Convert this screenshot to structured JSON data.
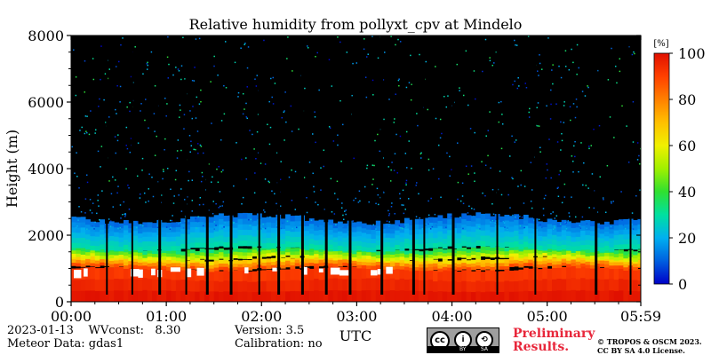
{
  "chart_data": {
    "type": "heatmap",
    "title": "Relative humidity from pollyxt_cpv at Mindelo",
    "xlabel": "UTC",
    "ylabel": "Height (m)",
    "x_ticks": [
      "00:00",
      "01:00",
      "02:00",
      "03:00",
      "04:00",
      "05:00",
      "05:59"
    ],
    "x_range_minutes": [
      0,
      359
    ],
    "y_ticks": [
      0,
      2000,
      4000,
      6000,
      8000
    ],
    "ylim": [
      0,
      8000
    ],
    "colorbar": {
      "label": "[%]",
      "range": [
        0,
        100
      ],
      "ticks": [
        0,
        20,
        40,
        60,
        80,
        100
      ],
      "colormap": [
        "#0000c8",
        "#0060e0",
        "#00b0f0",
        "#00e0a0",
        "#30e030",
        "#a0f000",
        "#f0f000",
        "#ffc000",
        "#ff8000",
        "#ff4000",
        "#e01000"
      ]
    },
    "background_no_data": "#000000",
    "layers": [
      {
        "height_range": [
          0,
          1000
        ],
        "rh_percent": "90-100"
      },
      {
        "height_range": [
          1000,
          1300
        ],
        "rh_percent": "60-90"
      },
      {
        "height_range": [
          1300,
          1600
        ],
        "rh_percent": "30-60"
      },
      {
        "height_range": [
          1600,
          2500
        ],
        "rh_percent": "10-30"
      },
      {
        "height_range": [
          2500,
          8000
        ],
        "rh_percent": "0-15 (sparse)"
      }
    ],
    "gap_times_minutes": [
      22,
      38,
      55,
      72,
      85,
      100,
      118,
      130,
      145,
      160,
      175,
      195,
      215,
      222,
      240,
      268,
      292,
      330,
      352
    ]
  },
  "footer": {
    "date_line": "2023-01-13    WVconst:   8.30",
    "meteor_line": "Meteor Data: gdas1",
    "version_line": "Version: 3.5",
    "calibration_line": "Calibration: no",
    "license_strip": [
      "BY",
      "SA"
    ],
    "preliminary": "Preliminary\nResults.",
    "copyright": "© TROPOS & OSCM 2023.\nCC BY SA 4.0 License."
  }
}
